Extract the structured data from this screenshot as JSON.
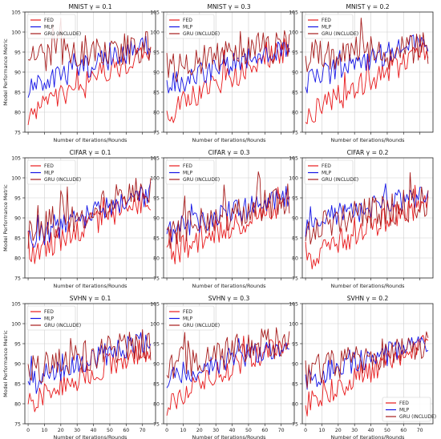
{
  "figure": {
    "legend_entries": [
      {
        "name": "FED",
        "color": "#e8191b"
      },
      {
        "name": "MLP",
        "color": "#1414e6"
      },
      {
        "name": "GRU (INCLUDE)",
        "color": "#a61c1c"
      }
    ],
    "xlabel": "Number of Iterations/Rounds",
    "ylabel": "Model Performance Metric",
    "xlim": [
      -2,
      78
    ],
    "ylim": [
      75,
      105
    ],
    "yticks": [
      "75",
      "80",
      "85",
      "90",
      "95",
      "100",
      "105"
    ],
    "xticks": [
      "0",
      "10",
      "20",
      "30",
      "40",
      "50",
      "60",
      "70"
    ],
    "grid": true
  },
  "chart_data": [
    {
      "type": "line",
      "title": "MNIST γ = 0.1",
      "xlabel": "Number of Iterations/Rounds",
      "ylabel": "Model Performance Metric",
      "legend": "top-left",
      "x_range": [
        0,
        75
      ],
      "ylim": [
        75,
        105
      ],
      "show_xticklabels": false,
      "series": [
        {
          "name": "FED",
          "start": 79,
          "end": 95
        },
        {
          "name": "MLP",
          "start": 85,
          "end": 97
        },
        {
          "name": "GRU (INCLUDE)",
          "start": 94,
          "end": 96
        }
      ]
    },
    {
      "type": "line",
      "title": "MNIST γ = 0.3",
      "xlabel": "Number of Iterations/Rounds",
      "ylabel": "",
      "legend": "top-left",
      "x_range": [
        0,
        75
      ],
      "ylim": [
        75,
        105
      ],
      "show_xticklabels": false,
      "series": [
        {
          "name": "FED",
          "start": 79,
          "end": 96
        },
        {
          "name": "MLP",
          "start": 86,
          "end": 96
        },
        {
          "name": "GRU (INCLUDE)",
          "start": 91,
          "end": 97
        }
      ]
    },
    {
      "type": "line",
      "title": "MNIST γ = 0.2",
      "xlabel": "Number of Iterations/Rounds",
      "ylabel": "",
      "legend": "top-left",
      "x_range": [
        0,
        75
      ],
      "ylim": [
        75,
        105
      ],
      "show_xticklabels": false,
      "series": [
        {
          "name": "FED",
          "start": 79,
          "end": 95
        },
        {
          "name": "MLP",
          "start": 87,
          "end": 98
        },
        {
          "name": "GRU (INCLUDE)",
          "start": 94,
          "end": 96
        }
      ]
    },
    {
      "type": "line",
      "title": "CIFAR γ = 0.1",
      "xlabel": "Number of Iterations/Rounds",
      "ylabel": "Model Performance Metric",
      "legend": "top-left",
      "x_range": [
        0,
        75
      ],
      "ylim": [
        75,
        105
      ],
      "show_xticklabels": false,
      "series": [
        {
          "name": "FED",
          "start": 80,
          "end": 95
        },
        {
          "name": "MLP",
          "start": 84,
          "end": 96
        },
        {
          "name": "GRU (INCLUDE)",
          "start": 86,
          "end": 97
        }
      ]
    },
    {
      "type": "line",
      "title": "CIFAR γ = 0.3",
      "xlabel": "Number of Iterations/Rounds",
      "ylabel": "",
      "legend": "top-left",
      "x_range": [
        0,
        75
      ],
      "ylim": [
        75,
        105
      ],
      "show_xticklabels": false,
      "series": [
        {
          "name": "FED",
          "start": 80,
          "end": 94
        },
        {
          "name": "MLP",
          "start": 86,
          "end": 95
        },
        {
          "name": "GRU (INCLUDE)",
          "start": 86,
          "end": 95
        }
      ]
    },
    {
      "type": "line",
      "title": "CIFAR γ = 0.2",
      "xlabel": "Number of Iterations/Rounds",
      "ylabel": "",
      "legend": "top-left",
      "x_range": [
        0,
        75
      ],
      "ylim": [
        75,
        105
      ],
      "show_xticklabels": false,
      "series": [
        {
          "name": "FED",
          "start": 79,
          "end": 94
        },
        {
          "name": "MLP",
          "start": 88,
          "end": 96
        },
        {
          "name": "GRU (INCLUDE)",
          "start": 87,
          "end": 94
        }
      ]
    },
    {
      "type": "line",
      "title": "SVHN γ = 0.1",
      "xlabel": "Number of Iterations/Rounds",
      "ylabel": "Model Performance Metric",
      "legend": "top-left",
      "x_range": [
        0,
        75
      ],
      "ylim": [
        75,
        105
      ],
      "show_xticklabels": true,
      "series": [
        {
          "name": "FED",
          "start": 80,
          "end": 94
        },
        {
          "name": "MLP",
          "start": 85,
          "end": 96
        },
        {
          "name": "GRU (INCLUDE)",
          "start": 88,
          "end": 95
        }
      ]
    },
    {
      "type": "line",
      "title": "SVHN γ = 0.3",
      "xlabel": "Number of Iterations/Rounds",
      "ylabel": "",
      "legend": "top-left",
      "x_range": [
        0,
        75
      ],
      "ylim": [
        75,
        105
      ],
      "show_xticklabels": true,
      "series": [
        {
          "name": "FED",
          "start": 80,
          "end": 96
        },
        {
          "name": "MLP",
          "start": 86,
          "end": 95
        },
        {
          "name": "GRU (INCLUDE)",
          "start": 89,
          "end": 96
        }
      ]
    },
    {
      "type": "line",
      "title": "SVHN γ = 0.2",
      "xlabel": "Number of Iterations/Rounds",
      "ylabel": "",
      "legend": "bottom-right",
      "x_range": [
        0,
        75
      ],
      "ylim": [
        75,
        105
      ],
      "show_xticklabels": true,
      "series": [
        {
          "name": "FED",
          "start": 79,
          "end": 95
        },
        {
          "name": "MLP",
          "start": 86,
          "end": 95
        },
        {
          "name": "GRU (INCLUDE)",
          "start": 88,
          "end": 95
        }
      ]
    }
  ]
}
